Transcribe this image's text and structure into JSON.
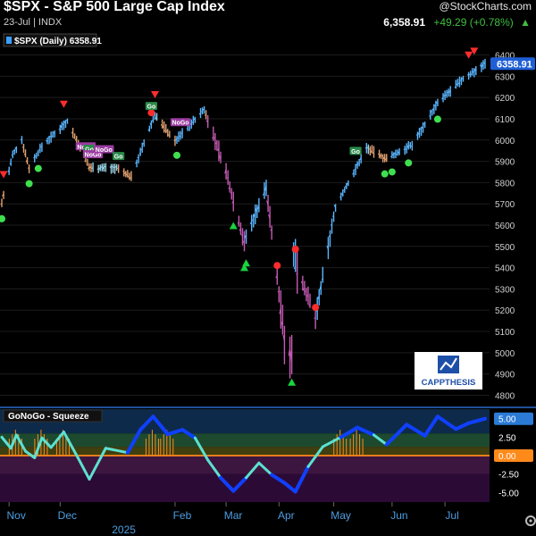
{
  "header": {
    "title": "$SPX - S&P 500 Large Cap Index",
    "subtitle": "23-Jul | INDX",
    "logo": "@StockCharts.com",
    "last": "6,358.91",
    "change": "+49.29 (+0.78%)"
  },
  "chart_data": [
    {
      "type": "bar",
      "title": "",
      "legend": "$SPX (Daily) 6358.91",
      "last_value_label": "6358.91",
      "y_ticks": [
        4800,
        4900,
        5000,
        5100,
        5200,
        5300,
        5400,
        5500,
        5600,
        5700,
        5800,
        5900,
        6000,
        6100,
        6200,
        6300,
        6400
      ],
      "ylim": [
        4760,
        6440
      ],
      "x_month_labels": [
        "Nov",
        "Dec",
        "Feb",
        "Mar",
        "Apr",
        "May",
        "Jun",
        "Jul"
      ],
      "x_year_label": "2025",
      "series": [
        {
          "points": [
            [
              "2024-10-31",
              5705
            ],
            [
              "2024-11-06",
              5928
            ],
            [
              "2024-11-11",
              6001
            ],
            [
              "2024-11-15",
              5870
            ],
            [
              "2024-11-22",
              5970
            ],
            [
              "2024-12-06",
              6090
            ],
            [
              "2024-12-18",
              5872
            ],
            [
              "2025-01-02",
              5868
            ],
            [
              "2025-01-10",
              5827
            ],
            [
              "2025-01-23",
              6118
            ],
            [
              "2025-02-03",
              5994
            ],
            [
              "2025-02-19",
              6144
            ],
            [
              "2025-03-03",
              5849
            ],
            [
              "2025-03-13",
              5521
            ],
            [
              "2025-03-25",
              5777
            ],
            [
              "2025-04-04",
              5074
            ],
            [
              "2025-04-08",
              4982
            ],
            [
              "2025-04-09",
              5457
            ],
            [
              "2025-04-21",
              5158
            ],
            [
              "2025-05-02",
              5687
            ],
            [
              "2025-05-12",
              5845
            ],
            [
              "2025-05-19",
              5963
            ],
            [
              "2025-05-30",
              5911
            ],
            [
              "2025-06-13",
              5977
            ],
            [
              "2025-06-27",
              6173
            ],
            [
              "2025-07-10",
              6280
            ],
            [
              "2025-07-23",
              6359
            ]
          ]
        }
      ],
      "signals": {
        "sell_arrows": [
          "2024-11-01",
          "2024-12-04",
          "2025-01-23",
          "2025-07-14",
          "2025-07-17"
        ],
        "buy_arrows": [
          "2025-03-07",
          "2025-03-13",
          "2025-03-14",
          "2025-04-08"
        ],
        "green_dots": [
          "2024-10-31",
          "2024-11-15",
          "2024-11-20",
          "2025-02-04",
          "2025-05-29",
          "2025-06-02",
          "2025-06-11",
          "2025-06-27"
        ],
        "red_dots": [
          "2025-01-21",
          "2025-03-31",
          "2025-04-10",
          "2025-04-21"
        ],
        "labels": [
          {
            "date": "2024-12-16",
            "text": "NoGo"
          },
          {
            "date": "2024-12-18",
            "text": "Go"
          },
          {
            "date": "2024-12-20",
            "text": "NoGo"
          },
          {
            "date": "2024-12-26",
            "text": "NoGo"
          },
          {
            "date": "2025-01-03",
            "text": "Go"
          },
          {
            "date": "2025-01-21",
            "text": "Go"
          },
          {
            "date": "2025-02-06",
            "text": "NoGo"
          },
          {
            "date": "2025-05-13",
            "text": "Go"
          }
        ]
      }
    },
    {
      "type": "line",
      "title": "GoNoGo - Squeeze",
      "y_ticks": [
        5.0,
        2.5,
        0.0,
        -2.5,
        -5.0
      ],
      "y_tick_labels": [
        "5.00",
        "2.50",
        "0.00",
        "-2.50",
        "-5.00"
      ],
      "ylim": [
        -6.3,
        6.3
      ],
      "series": [
        {
          "points": [
            [
              "2024-10-31",
              2.5
            ],
            [
              "2024-11-05",
              1.0
            ],
            [
              "2024-11-08",
              2.8
            ],
            [
              "2024-11-13",
              0.6
            ],
            [
              "2024-11-18",
              -0.3
            ],
            [
              "2024-11-22",
              2.4
            ],
            [
              "2024-11-27",
              1.1
            ],
            [
              "2024-12-04",
              3.2
            ],
            [
              "2024-12-12",
              -0.4
            ],
            [
              "2024-12-18",
              -3.2
            ],
            [
              "2024-12-27",
              1.0
            ],
            [
              "2025-01-08",
              0.4
            ],
            [
              "2025-01-15",
              3.5
            ],
            [
              "2025-01-22",
              5.3
            ],
            [
              "2025-01-30",
              2.9
            ],
            [
              "2025-02-07",
              3.5
            ],
            [
              "2025-02-14",
              2.4
            ],
            [
              "2025-02-21",
              -0.6
            ],
            [
              "2025-02-28",
              -3.0
            ],
            [
              "2025-03-07",
              -4.8
            ],
            [
              "2025-03-14",
              -3.0
            ],
            [
              "2025-03-21",
              -1.0
            ],
            [
              "2025-03-28",
              -2.6
            ],
            [
              "2025-04-04",
              -3.7
            ],
            [
              "2025-04-10",
              -4.9
            ],
            [
              "2025-04-17",
              -1.5
            ],
            [
              "2025-04-25",
              1.2
            ],
            [
              "2025-05-05",
              2.5
            ],
            [
              "2025-05-14",
              3.8
            ],
            [
              "2025-05-23",
              2.8
            ],
            [
              "2025-05-30",
              1.5
            ],
            [
              "2025-06-10",
              4.2
            ],
            [
              "2025-06-20",
              2.7
            ],
            [
              "2025-06-27",
              5.3
            ],
            [
              "2025-07-07",
              3.6
            ],
            [
              "2025-07-14",
              4.4
            ],
            [
              "2025-07-23",
              5.0
            ]
          ]
        }
      ]
    }
  ],
  "watermark": {
    "brand": "CAPPTHESIS"
  },
  "colors": {
    "up_bar": "#5ab6ff",
    "neutral_bar": "#9ad4e8",
    "down_bar": "#c45ab3",
    "weak_down_bar": "#e0a070",
    "sell_arrow": "#ff2d2d",
    "buy_arrow": "#19d43f",
    "green_dot": "#3fe04f",
    "red_dot": "#ff2c2c",
    "oscillator_line": "#5de0d0",
    "oscillator_strong": "#1040ff",
    "zero_line": "#ff8a1a",
    "squeeze_hatch": "#ff8a1a",
    "label_go": "#2a8a4a",
    "label_nogo": "#9a3ba0",
    "last_value_box": "#1f5fd6"
  }
}
